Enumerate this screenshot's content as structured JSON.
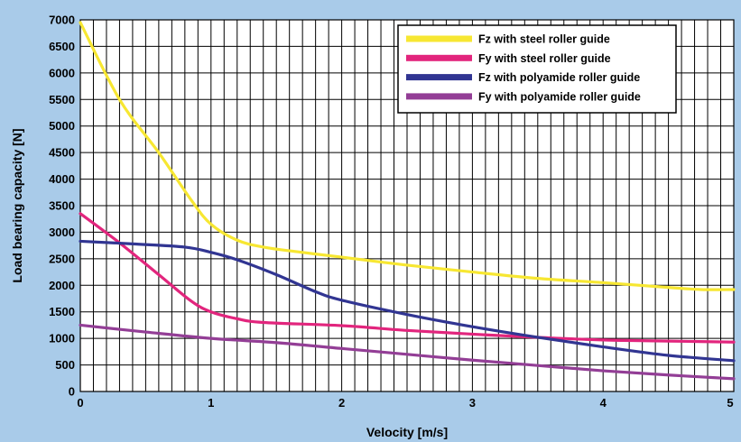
{
  "chart_data": {
    "type": "line",
    "xlabel": "Velocity [m/s]",
    "ylabel": "Load bearing capacity [N]",
    "xlim": [
      0,
      5
    ],
    "ylim": [
      0,
      7000
    ],
    "x_ticks": [
      "0",
      "1",
      "2",
      "3",
      "4",
      "5"
    ],
    "y_ticks": [
      "0",
      "500",
      "1000",
      "1500",
      "2000",
      "2500",
      "3000",
      "3500",
      "4000",
      "4500",
      "5000",
      "5500",
      "6000",
      "6500",
      "7000"
    ],
    "grid": true,
    "legend_position": "top-right",
    "colors": {
      "background": "#a9cbe9",
      "plot_background": "#ffffff",
      "grid": "#000000"
    },
    "series": [
      {
        "name": "Fz with steel roller guide",
        "color": "#f7e732",
        "points": [
          [
            0,
            6950
          ],
          [
            0.3,
            5500
          ],
          [
            0.6,
            4500
          ],
          [
            0.85,
            3600
          ],
          [
            1.0,
            3150
          ],
          [
            1.2,
            2850
          ],
          [
            1.4,
            2720
          ],
          [
            1.7,
            2620
          ],
          [
            2.0,
            2530
          ],
          [
            2.5,
            2380
          ],
          [
            3.0,
            2250
          ],
          [
            3.5,
            2130
          ],
          [
            4.0,
            2050
          ],
          [
            4.5,
            1960
          ],
          [
            4.75,
            1920
          ],
          [
            5.0,
            1920
          ]
        ]
      },
      {
        "name": "Fy with steel roller guide",
        "color": "#e2257d",
        "points": [
          [
            0,
            3350
          ],
          [
            0.3,
            2800
          ],
          [
            0.6,
            2200
          ],
          [
            0.85,
            1700
          ],
          [
            1.0,
            1500
          ],
          [
            1.2,
            1370
          ],
          [
            1.4,
            1300
          ],
          [
            2.0,
            1240
          ],
          [
            2.5,
            1150
          ],
          [
            3.0,
            1080
          ],
          [
            3.5,
            1020
          ],
          [
            4.0,
            970
          ],
          [
            4.5,
            950
          ],
          [
            5.0,
            930
          ]
        ]
      },
      {
        "name": "Fz with polyamide roller guide",
        "color": "#313592",
        "points": [
          [
            0,
            2830
          ],
          [
            0.4,
            2780
          ],
          [
            0.8,
            2720
          ],
          [
            1.0,
            2620
          ],
          [
            1.2,
            2480
          ],
          [
            1.5,
            2200
          ],
          [
            1.8,
            1880
          ],
          [
            2.0,
            1720
          ],
          [
            2.5,
            1450
          ],
          [
            3.0,
            1220
          ],
          [
            3.5,
            1020
          ],
          [
            4.0,
            840
          ],
          [
            4.5,
            680
          ],
          [
            5.0,
            580
          ]
        ]
      },
      {
        "name": "Fy with polyamide roller guide",
        "color": "#933e96",
        "points": [
          [
            0,
            1250
          ],
          [
            0.5,
            1120
          ],
          [
            1.0,
            1000
          ],
          [
            1.5,
            920
          ],
          [
            2.0,
            810
          ],
          [
            2.5,
            700
          ],
          [
            3.0,
            590
          ],
          [
            3.5,
            490
          ],
          [
            4.0,
            390
          ],
          [
            4.5,
            310
          ],
          [
            5.0,
            240
          ]
        ]
      }
    ]
  }
}
